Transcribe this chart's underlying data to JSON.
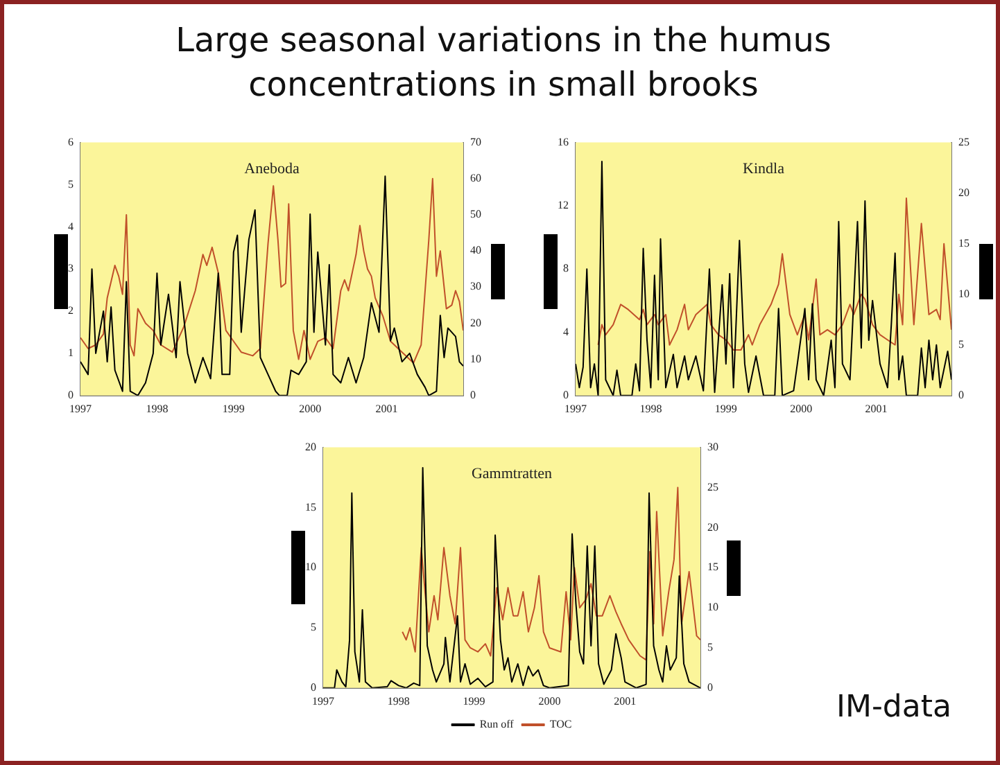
{
  "chart_data": [
    {
      "type": "line",
      "title": "Aneboda",
      "annotations": [
        "Large seasonal variations in the humus concentrations in small brooks"
      ],
      "xlim": [
        1997,
        2002
      ],
      "xticks": [
        1997,
        1998,
        1999,
        2000,
        2001
      ],
      "ylim": [
        0,
        6
      ],
      "yticks": [
        0,
        1,
        2,
        3,
        4,
        5,
        6
      ],
      "y2lim": [
        0,
        70
      ],
      "y2ticks": [
        0,
        10,
        20,
        30,
        40,
        50,
        60,
        70
      ],
      "series": [
        {
          "color": "#000000",
          "x": [
            1997.0,
            1997.1,
            1997.15,
            1997.2,
            1997.3,
            1997.35,
            1997.4,
            1997.45,
            1997.55,
            1997.6,
            1997.65,
            1997.75,
            1997.85,
            1997.95,
            1998.0,
            1998.05,
            1998.15,
            1998.25,
            1998.3,
            1998.4,
            1998.5,
            1998.6,
            1998.7,
            1998.8,
            1998.85,
            1998.95,
            1999.0,
            1999.05,
            1999.1,
            1999.2,
            1999.28,
            1999.35,
            1999.45,
            1999.55,
            1999.6,
            1999.7,
            1999.75,
            1999.85,
            1999.95,
            2000.0,
            2000.05,
            2000.1,
            2000.2,
            2000.25,
            2000.3,
            2000.4,
            2000.5,
            2000.6,
            2000.7,
            2000.8,
            2000.9,
            2000.98,
            2001.05,
            2001.1,
            2001.2,
            2001.3,
            2001.4,
            2001.5,
            2001.55,
            2001.65,
            2001.7,
            2001.75,
            2001.8,
            2001.9,
            2001.95,
            2002.0
          ],
          "values": [
            0.8,
            0.5,
            3.0,
            1.0,
            2.0,
            0.8,
            2.1,
            0.6,
            0.1,
            2.7,
            0.1,
            0.0,
            0.3,
            1.0,
            2.9,
            1.2,
            2.4,
            0.9,
            2.7,
            1.0,
            0.3,
            0.9,
            0.4,
            2.9,
            0.5,
            0.5,
            3.4,
            3.8,
            1.5,
            3.7,
            4.4,
            0.9,
            0.5,
            0.1,
            0.0,
            0.0,
            0.6,
            0.5,
            0.8,
            4.3,
            1.5,
            3.4,
            1.2,
            3.1,
            0.5,
            0.3,
            0.9,
            0.3,
            0.9,
            2.2,
            1.5,
            5.2,
            1.3,
            1.6,
            0.8,
            1.0,
            0.5,
            0.2,
            0.0,
            0.1,
            1.9,
            0.9,
            1.6,
            1.4,
            0.8,
            0.7
          ]
        },
        {
          "color": "#c0502a",
          "axis": "y2",
          "x": [
            1997.0,
            1997.1,
            1997.2,
            1997.3,
            1997.35,
            1997.45,
            1997.5,
            1997.55,
            1997.6,
            1997.65,
            1997.7,
            1997.75,
            1997.85,
            1997.95,
            1998.05,
            1998.2,
            1998.35,
            1998.5,
            1998.6,
            1998.65,
            1998.72,
            1998.8,
            1998.9,
            1999.0,
            1999.1,
            1999.25,
            1999.35,
            1999.45,
            1999.52,
            1999.58,
            1999.62,
            1999.68,
            1999.72,
            1999.78,
            1999.85,
            1999.92,
            2000.0,
            2000.1,
            2000.2,
            2000.3,
            2000.4,
            2000.45,
            2000.5,
            2000.6,
            2000.65,
            2000.7,
            2000.75,
            2000.8,
            2000.85,
            2000.95,
            2001.05,
            2001.2,
            2001.35,
            2001.45,
            2001.55,
            2001.6,
            2001.65,
            2001.7,
            2001.78,
            2001.85,
            2001.9,
            2001.95,
            2002.0
          ],
          "values": [
            16,
            13,
            14,
            17,
            27,
            36,
            33,
            28,
            50,
            14,
            11,
            24,
            20,
            18,
            14,
            12,
            19,
            29,
            39,
            36,
            41,
            34,
            18,
            15,
            12,
            11,
            13,
            42,
            58,
            43,
            30,
            31,
            53,
            18,
            10,
            18,
            10,
            15,
            16,
            13,
            29,
            32,
            29,
            39,
            47,
            40,
            35,
            33,
            27,
            22,
            15,
            12,
            9,
            14,
            43,
            60,
            33,
            40,
            24,
            25,
            29,
            26,
            18
          ]
        }
      ]
    },
    {
      "type": "line",
      "title": "Kindla",
      "xlim": [
        1997,
        2002
      ],
      "xticks": [
        1997,
        1998,
        1999,
        2000,
        2001
      ],
      "ylim": [
        0,
        16
      ],
      "yticks": [
        0,
        4,
        8,
        12,
        16
      ],
      "y2lim": [
        0,
        25
      ],
      "y2ticks": [
        0,
        5,
        10,
        15,
        20,
        25
      ],
      "series": [
        {
          "color": "#000000",
          "x": [
            1997.0,
            1997.05,
            1997.1,
            1997.15,
            1997.2,
            1997.25,
            1997.3,
            1997.35,
            1997.4,
            1997.5,
            1997.55,
            1997.6,
            1997.75,
            1997.8,
            1997.85,
            1997.9,
            1997.95,
            1998.0,
            1998.05,
            1998.1,
            1998.13,
            1998.2,
            1998.3,
            1998.35,
            1998.45,
            1998.5,
            1998.6,
            1998.7,
            1998.78,
            1998.85,
            1998.95,
            1999.0,
            1999.05,
            1999.1,
            1999.18,
            1999.25,
            1999.3,
            1999.4,
            1999.5,
            1999.65,
            1999.7,
            1999.75,
            1999.9,
            1999.95,
            2000.05,
            2000.1,
            2000.15,
            2000.2,
            2000.3,
            2000.4,
            2000.45,
            2000.5,
            2000.55,
            2000.65,
            2000.75,
            2000.8,
            2000.85,
            2000.9,
            2000.95,
            2001.05,
            2001.15,
            2001.2,
            2001.25,
            2001.3,
            2001.35,
            2001.4,
            2001.55,
            2001.6,
            2001.65,
            2001.7,
            2001.75,
            2001.8,
            2001.85,
            2001.95,
            2002.0
          ],
          "values": [
            2.0,
            0.5,
            1.8,
            8.0,
            0.5,
            2.0,
            0.0,
            14.8,
            1.0,
            0.0,
            1.6,
            0.0,
            0.0,
            2.0,
            0.3,
            9.3,
            3.5,
            0.5,
            7.6,
            1.0,
            9.9,
            0.5,
            2.6,
            0.5,
            2.5,
            1.0,
            2.5,
            0.3,
            8.0,
            0.2,
            7.0,
            2.0,
            7.7,
            0.5,
            9.8,
            2.0,
            0.2,
            2.5,
            0.0,
            0.0,
            5.5,
            0.0,
            0.3,
            2.0,
            5.5,
            1.0,
            5.8,
            1.0,
            0.0,
            3.5,
            0.5,
            11.0,
            2.0,
            1.0,
            11.0,
            3.0,
            12.3,
            3.5,
            6.0,
            2.0,
            0.5,
            4.5,
            9.0,
            1.0,
            2.5,
            0.0,
            0.0,
            3.0,
            0.5,
            3.5,
            1.0,
            3.2,
            0.5,
            2.8,
            1.0
          ]
        },
        {
          "color": "#c0502a",
          "axis": "y2",
          "x": [
            1997.3,
            1997.35,
            1997.4,
            1997.5,
            1997.6,
            1997.7,
            1997.85,
            1997.9,
            1997.95,
            1998.05,
            1998.1,
            1998.2,
            1998.25,
            1998.35,
            1998.45,
            1998.5,
            1998.6,
            1998.75,
            1998.8,
            1998.9,
            1999.0,
            1999.1,
            1999.2,
            1999.3,
            1999.35,
            1999.45,
            1999.6,
            1999.7,
            1999.75,
            1999.85,
            1999.95,
            2000.05,
            2000.1,
            2000.2,
            2000.25,
            2000.35,
            2000.45,
            2000.55,
            2000.65,
            2000.7,
            2000.8,
            2000.85,
            2000.95,
            2001.05,
            2001.15,
            2001.25,
            2001.3,
            2001.35,
            2001.4,
            2001.5,
            2001.6,
            2001.7,
            2001.8,
            2001.85,
            2001.9,
            2002.0
          ],
          "values": [
            5,
            7,
            6,
            7,
            9,
            8.5,
            7.5,
            8.5,
            7,
            8,
            7,
            8,
            5,
            6.5,
            9,
            6.5,
            8,
            9,
            7,
            6,
            5.5,
            4.5,
            4.5,
            6,
            5,
            7,
            9,
            11,
            14,
            8,
            6,
            8,
            5.5,
            11.5,
            6,
            6.5,
            6,
            7,
            9,
            8,
            10,
            9.5,
            7,
            6,
            5.5,
            5,
            10,
            7,
            19.5,
            7,
            17,
            8,
            8.5,
            7.5,
            15,
            6.5
          ]
        }
      ]
    },
    {
      "type": "line",
      "title": "Gammtratten",
      "annotations": [
        "IM-data"
      ],
      "legend": "bottom",
      "xlim": [
        1997,
        2002
      ],
      "xticks": [
        1997,
        1998,
        1999,
        2000,
        2001
      ],
      "ylim": [
        0,
        20
      ],
      "yticks": [
        0,
        5,
        10,
        15,
        20
      ],
      "y2lim": [
        0,
        30
      ],
      "y2ticks": [
        0,
        5,
        10,
        15,
        20,
        25,
        30
      ],
      "series": [
        {
          "name": "Run off",
          "color": "#000000",
          "x": [
            1997.0,
            1997.15,
            1997.18,
            1997.25,
            1997.3,
            1997.35,
            1997.38,
            1997.42,
            1997.48,
            1997.52,
            1997.56,
            1997.65,
            1997.85,
            1997.9,
            1998.0,
            1998.1,
            1998.2,
            1998.28,
            1998.32,
            1998.38,
            1998.45,
            1998.5,
            1998.6,
            1998.62,
            1998.68,
            1998.78,
            1998.82,
            1998.88,
            1998.95,
            1999.05,
            1999.15,
            1999.25,
            1999.28,
            1999.35,
            1999.4,
            1999.45,
            1999.5,
            1999.58,
            1999.65,
            1999.72,
            1999.78,
            1999.85,
            1999.92,
            2000.0,
            2000.25,
            2000.3,
            2000.35,
            2000.4,
            2000.45,
            2000.5,
            2000.55,
            2000.6,
            2000.65,
            2000.72,
            2000.82,
            2000.88,
            2000.95,
            2001.0,
            2001.15,
            2001.28,
            2001.32,
            2001.38,
            2001.45,
            2001.5,
            2001.55,
            2001.6,
            2001.68,
            2001.72,
            2001.78,
            2001.85,
            2002.0
          ],
          "values": [
            0,
            0,
            1.5,
            0.5,
            0.1,
            4,
            16.2,
            3,
            0.5,
            6.5,
            0.5,
            0.0,
            0.1,
            0.6,
            0.2,
            0.0,
            0.4,
            0.2,
            18.3,
            3.5,
            1.5,
            0.5,
            2.0,
            4.2,
            0.5,
            6.0,
            0.5,
            2.0,
            0.3,
            0.8,
            0.1,
            0.5,
            12.7,
            4,
            1.5,
            2.5,
            0.5,
            2.0,
            0.2,
            1.8,
            1.0,
            1.5,
            0.2,
            0.0,
            0.2,
            12.8,
            7,
            3,
            2,
            11.8,
            3.5,
            11.8,
            2,
            0.3,
            1.5,
            4.5,
            2.5,
            0.5,
            0.0,
            0.3,
            16.2,
            3.5,
            1.5,
            0.5,
            3.5,
            1.5,
            2.5,
            9.3,
            2.0,
            0.5,
            0.0
          ]
        },
        {
          "name": "TOC",
          "color": "#c0502a",
          "axis": "y2",
          "x": [
            1998.05,
            1998.1,
            1998.15,
            1998.22,
            1998.3,
            1998.35,
            1998.4,
            1998.47,
            1998.52,
            1998.6,
            1998.68,
            1998.75,
            1998.82,
            1998.88,
            1998.95,
            1999.05,
            1999.15,
            1999.22,
            1999.3,
            1999.38,
            1999.45,
            1999.52,
            1999.58,
            1999.65,
            1999.72,
            1999.8,
            1999.86,
            1999.92,
            2000.0,
            2000.15,
            2000.22,
            2000.28,
            2000.33,
            2000.4,
            2000.48,
            2000.55,
            2000.62,
            2000.7,
            2000.8,
            2000.88,
            2000.95,
            2001.05,
            2001.2,
            2001.28,
            2001.33,
            2001.38,
            2001.42,
            2001.5,
            2001.58,
            2001.65,
            2001.7,
            2001.75,
            2001.85,
            2001.95,
            2002.0
          ],
          "values": [
            7,
            6,
            7.5,
            4.5,
            17.5,
            12,
            7,
            11.5,
            8.5,
            17.5,
            11.5,
            8,
            17.5,
            6,
            5,
            4.5,
            5.5,
            4,
            12.5,
            8.5,
            12.5,
            9,
            9,
            12,
            7,
            10,
            14,
            7,
            5,
            4.5,
            12,
            6,
            15,
            10,
            11,
            13,
            9,
            9,
            11.5,
            9.5,
            8,
            6,
            4,
            3.5,
            17,
            8,
            22,
            6.5,
            12,
            16,
            25,
            8,
            14.5,
            6.5,
            6
          ]
        }
      ]
    }
  ]
}
